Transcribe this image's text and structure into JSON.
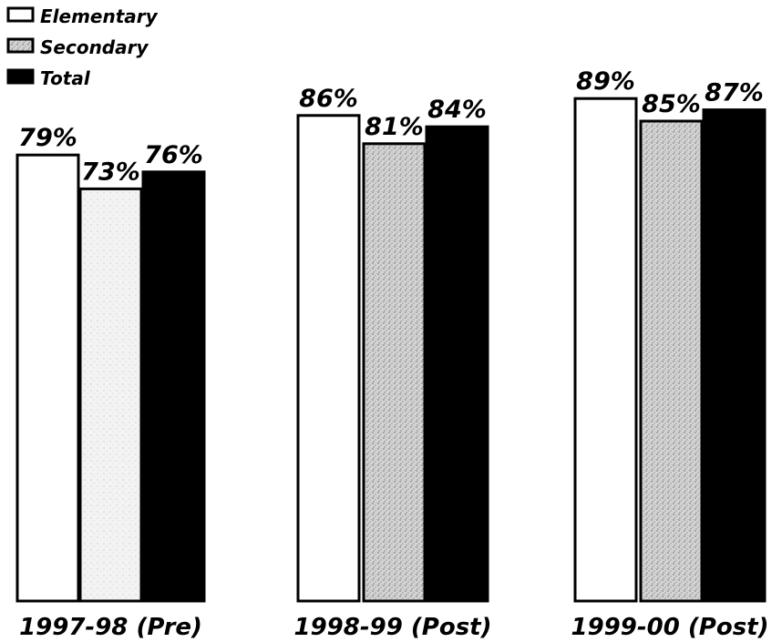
{
  "chart_data": {
    "type": "bar",
    "categories": [
      "1997-98 (Pre)",
      "1998-99 (Post)",
      "1999-00 (Post)"
    ],
    "series": [
      {
        "name": "Elementary",
        "values": [
          79,
          86,
          89
        ],
        "labels": [
          "79%",
          "86%",
          "89%"
        ],
        "pattern": "white"
      },
      {
        "name": "Secondary",
        "values": [
          73,
          81,
          85
        ],
        "labels": [
          "73%",
          "81%",
          "85%"
        ],
        "pattern": "speckled-gray"
      },
      {
        "name": "Total",
        "values": [
          76,
          84,
          87
        ],
        "labels": [
          "76%",
          "84%",
          "87%"
        ],
        "pattern": "black"
      }
    ],
    "ylim": [
      0,
      100
    ],
    "legend_position": "top-left",
    "grid": false,
    "colors": {
      "elementary": "#ffffff",
      "secondary": "#b8b8b8",
      "total": "#000000",
      "outline": "#000000"
    }
  }
}
